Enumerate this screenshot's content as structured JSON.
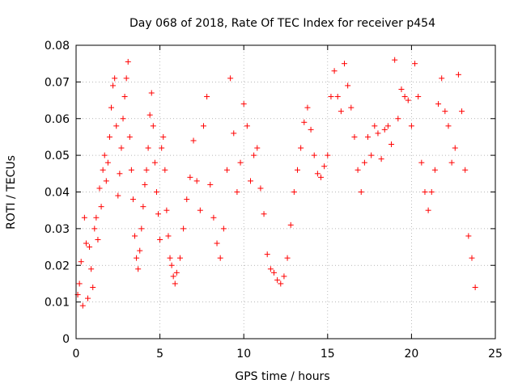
{
  "chart_data": {
    "type": "scatter",
    "title": "Day 068 of 2018, Rate Of TEC Index for receiver p454",
    "xlabel": "GPS time / hours",
    "ylabel": "ROTI / TECUs",
    "xlim": [
      0,
      25
    ],
    "ylim": [
      0,
      0.08
    ],
    "xticks": [
      0,
      5,
      10,
      15,
      20,
      25
    ],
    "yticks": [
      0,
      0.01,
      0.02,
      0.03,
      0.04,
      0.05,
      0.06,
      0.07,
      0.08
    ],
    "xtick_labels": [
      "0",
      "5",
      "10",
      "15",
      "20",
      "25"
    ],
    "ytick_labels": [
      "0",
      "0.01",
      "0.02",
      "0.03",
      "0.04",
      "0.05",
      "0.06",
      "0.07",
      "0.08"
    ],
    "grid": true,
    "marker": "+",
    "color": "#ff0000",
    "series": [
      {
        "name": "ROTI",
        "points": [
          [
            0.1,
            0.012
          ],
          [
            0.2,
            0.015
          ],
          [
            0.3,
            0.021
          ],
          [
            0.4,
            0.009
          ],
          [
            0.5,
            0.033
          ],
          [
            0.6,
            0.026
          ],
          [
            0.7,
            0.011
          ],
          [
            0.8,
            0.025
          ],
          [
            0.9,
            0.019
          ],
          [
            1.0,
            0.014
          ],
          [
            1.1,
            0.03
          ],
          [
            1.2,
            0.033
          ],
          [
            1.3,
            0.027
          ],
          [
            1.4,
            0.041
          ],
          [
            1.5,
            0.036
          ],
          [
            1.6,
            0.046
          ],
          [
            1.7,
            0.05
          ],
          [
            1.8,
            0.043
          ],
          [
            1.9,
            0.048
          ],
          [
            2.0,
            0.055
          ],
          [
            2.1,
            0.063
          ],
          [
            2.2,
            0.069
          ],
          [
            2.3,
            0.071
          ],
          [
            2.4,
            0.058
          ],
          [
            2.5,
            0.039
          ],
          [
            2.6,
            0.045
          ],
          [
            2.7,
            0.052
          ],
          [
            2.8,
            0.06
          ],
          [
            2.9,
            0.066
          ],
          [
            3.0,
            0.071
          ],
          [
            3.1,
            0.0755
          ],
          [
            3.2,
            0.055
          ],
          [
            3.3,
            0.046
          ],
          [
            3.4,
            0.038
          ],
          [
            3.5,
            0.028
          ],
          [
            3.6,
            0.022
          ],
          [
            3.7,
            0.019
          ],
          [
            3.8,
            0.024
          ],
          [
            3.9,
            0.03
          ],
          [
            4.0,
            0.036
          ],
          [
            4.1,
            0.042
          ],
          [
            4.2,
            0.046
          ],
          [
            4.3,
            0.052
          ],
          [
            4.4,
            0.061
          ],
          [
            4.5,
            0.067
          ],
          [
            4.6,
            0.058
          ],
          [
            4.7,
            0.048
          ],
          [
            4.8,
            0.04
          ],
          [
            4.9,
            0.034
          ],
          [
            5.0,
            0.027
          ],
          [
            5.1,
            0.052
          ],
          [
            5.2,
            0.055
          ],
          [
            5.3,
            0.046
          ],
          [
            5.4,
            0.035
          ],
          [
            5.5,
            0.028
          ],
          [
            5.6,
            0.022
          ],
          [
            5.7,
            0.02
          ],
          [
            5.8,
            0.017
          ],
          [
            5.9,
            0.015
          ],
          [
            6.0,
            0.018
          ],
          [
            6.2,
            0.022
          ],
          [
            6.4,
            0.03
          ],
          [
            6.6,
            0.038
          ],
          [
            6.8,
            0.044
          ],
          [
            7.0,
            0.054
          ],
          [
            7.2,
            0.043
          ],
          [
            7.4,
            0.035
          ],
          [
            7.6,
            0.058
          ],
          [
            7.8,
            0.066
          ],
          [
            8.0,
            0.042
          ],
          [
            8.2,
            0.033
          ],
          [
            8.4,
            0.026
          ],
          [
            8.6,
            0.022
          ],
          [
            8.8,
            0.03
          ],
          [
            9.0,
            0.046
          ],
          [
            9.2,
            0.071
          ],
          [
            9.4,
            0.056
          ],
          [
            9.6,
            0.04
          ],
          [
            9.8,
            0.048
          ],
          [
            10.0,
            0.064
          ],
          [
            10.2,
            0.058
          ],
          [
            10.4,
            0.043
          ],
          [
            10.6,
            0.05
          ],
          [
            10.8,
            0.052
          ],
          [
            11.0,
            0.041
          ],
          [
            11.2,
            0.034
          ],
          [
            11.4,
            0.023
          ],
          [
            11.6,
            0.019
          ],
          [
            11.8,
            0.018
          ],
          [
            12.0,
            0.016
          ],
          [
            12.2,
            0.015
          ],
          [
            12.4,
            0.017
          ],
          [
            12.6,
            0.022
          ],
          [
            12.8,
            0.031
          ],
          [
            13.0,
            0.04
          ],
          [
            13.2,
            0.046
          ],
          [
            13.4,
            0.052
          ],
          [
            13.6,
            0.059
          ],
          [
            13.8,
            0.063
          ],
          [
            14.0,
            0.057
          ],
          [
            14.2,
            0.05
          ],
          [
            14.4,
            0.045
          ],
          [
            14.6,
            0.044
          ],
          [
            14.8,
            0.047
          ],
          [
            15.0,
            0.05
          ],
          [
            15.2,
            0.066
          ],
          [
            15.4,
            0.073
          ],
          [
            15.6,
            0.066
          ],
          [
            15.8,
            0.062
          ],
          [
            16.0,
            0.075
          ],
          [
            16.2,
            0.069
          ],
          [
            16.4,
            0.063
          ],
          [
            16.6,
            0.055
          ],
          [
            16.8,
            0.046
          ],
          [
            17.0,
            0.04
          ],
          [
            17.2,
            0.048
          ],
          [
            17.4,
            0.055
          ],
          [
            17.6,
            0.05
          ],
          [
            17.8,
            0.058
          ],
          [
            18.0,
            0.056
          ],
          [
            18.2,
            0.049
          ],
          [
            18.4,
            0.057
          ],
          [
            18.6,
            0.058
          ],
          [
            18.8,
            0.053
          ],
          [
            19.0,
            0.076
          ],
          [
            19.2,
            0.06
          ],
          [
            19.4,
            0.068
          ],
          [
            19.6,
            0.066
          ],
          [
            19.8,
            0.065
          ],
          [
            20.0,
            0.058
          ],
          [
            20.2,
            0.075
          ],
          [
            20.4,
            0.066
          ],
          [
            20.6,
            0.048
          ],
          [
            20.8,
            0.04
          ],
          [
            21.0,
            0.035
          ],
          [
            21.2,
            0.04
          ],
          [
            21.4,
            0.046
          ],
          [
            21.6,
            0.064
          ],
          [
            21.8,
            0.071
          ],
          [
            22.0,
            0.062
          ],
          [
            22.2,
            0.058
          ],
          [
            22.4,
            0.048
          ],
          [
            22.6,
            0.052
          ],
          [
            22.8,
            0.072
          ],
          [
            23.0,
            0.062
          ],
          [
            23.2,
            0.046
          ],
          [
            23.4,
            0.028
          ],
          [
            23.6,
            0.022
          ],
          [
            23.8,
            0.014
          ]
        ]
      }
    ]
  }
}
